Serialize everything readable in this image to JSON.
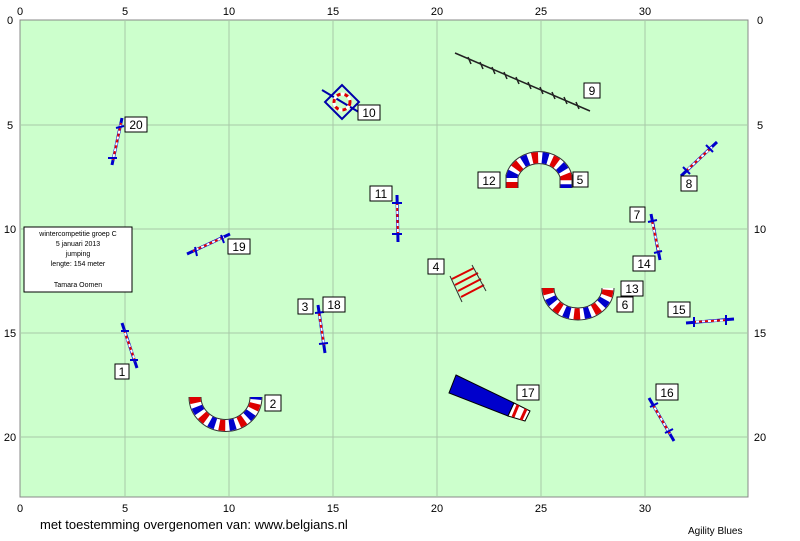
{
  "axis": {
    "x_ticks": [
      "0",
      "5",
      "10",
      "15",
      "20",
      "25",
      "30"
    ],
    "y_ticks": [
      "0",
      "5",
      "10",
      "15",
      "20"
    ]
  },
  "info_box": {
    "line1": "wintercompetitie groep C",
    "line2": "5 januari 2013",
    "line3": "jumping",
    "line4": "lengte: 154 meter",
    "line5": "Tamara Oomen"
  },
  "obstacles": {
    "n1": "1",
    "n2": "2",
    "n3": "3",
    "n4": "4",
    "n5": "5",
    "n6": "6",
    "n7": "7",
    "n8": "8",
    "n9": "9",
    "n10": "10",
    "n11": "11",
    "n12": "12",
    "n13": "13",
    "n14": "14",
    "n15": "15",
    "n16": "16",
    "n17": "17",
    "n18": "18",
    "n19": "19",
    "n20": "20"
  },
  "footer": {
    "credit": "met toestemming overgenomen van: www.belgians.nl",
    "brand": "Agility Blues"
  },
  "colors": {
    "field": "#ccffcc",
    "grid": "#a8c8a8",
    "pole_blue": "#0000cc",
    "pole_red": "#dd0000",
    "tunnel_blue": "#0000cc",
    "tunnel_red": "#ff0000"
  }
}
